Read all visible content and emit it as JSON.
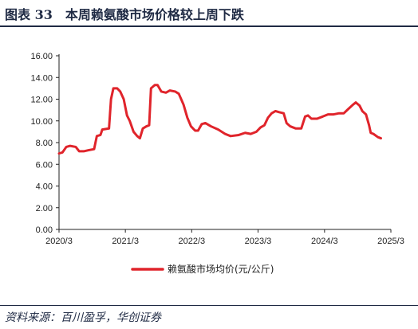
{
  "header": {
    "title": "图表 33　本周赖氨酸市场价格较上周下跌"
  },
  "footer": {
    "source": "资料来源：百川盈孚，华创证券"
  },
  "colors": {
    "series": "#e0242b",
    "text": "#1f2a44",
    "axis": "#222222"
  },
  "chart_data": {
    "type": "line",
    "title": "",
    "xlabel": "",
    "ylabel": "",
    "ylim": [
      0,
      16
    ],
    "xlim": [
      "2020-03-01",
      "2025-03-01"
    ],
    "y_ticks": [
      "0.00",
      "2.00",
      "4.00",
      "6.00",
      "8.00",
      "10.00",
      "12.00",
      "14.00",
      "16.00"
    ],
    "x_ticks": [
      {
        "label": "2020/3",
        "date": "2020-03-01"
      },
      {
        "label": "2021/3",
        "date": "2021-03-01"
      },
      {
        "label": "2022/3",
        "date": "2022-03-01"
      },
      {
        "label": "2023/3",
        "date": "2023-03-01"
      },
      {
        "label": "2024/3",
        "date": "2024-03-01"
      },
      {
        "label": "2025/3",
        "date": "2025-03-01"
      }
    ],
    "grid": false,
    "legend": "bottom-center",
    "series": [
      {
        "name": "赖氨酸市场均价(元/公斤)",
        "points": [
          [
            "2020-03-01",
            7.0
          ],
          [
            "2020-03-20",
            7.1
          ],
          [
            "2020-04-10",
            7.6
          ],
          [
            "2020-05-01",
            7.7
          ],
          [
            "2020-06-01",
            7.6
          ],
          [
            "2020-06-20",
            7.2
          ],
          [
            "2020-07-15",
            7.2
          ],
          [
            "2020-08-10",
            7.3
          ],
          [
            "2020-09-10",
            7.4
          ],
          [
            "2020-09-25",
            8.6
          ],
          [
            "2020-10-15",
            8.7
          ],
          [
            "2020-10-25",
            9.2
          ],
          [
            "2020-12-01",
            9.3
          ],
          [
            "2020-12-12",
            12.0
          ],
          [
            "2020-12-25",
            13.0
          ],
          [
            "2021-01-15",
            13.0
          ],
          [
            "2021-02-01",
            12.7
          ],
          [
            "2021-02-20",
            12.0
          ],
          [
            "2021-03-10",
            10.5
          ],
          [
            "2021-03-25",
            10.0
          ],
          [
            "2021-04-15",
            9.0
          ],
          [
            "2021-05-05",
            8.6
          ],
          [
            "2021-05-20",
            8.4
          ],
          [
            "2021-06-05",
            9.3
          ],
          [
            "2021-06-25",
            9.5
          ],
          [
            "2021-07-10",
            9.6
          ],
          [
            "2021-07-20",
            13.0
          ],
          [
            "2021-08-10",
            13.3
          ],
          [
            "2021-08-25",
            13.3
          ],
          [
            "2021-09-15",
            12.7
          ],
          [
            "2021-10-10",
            12.6
          ],
          [
            "2021-11-01",
            12.8
          ],
          [
            "2021-12-01",
            12.7
          ],
          [
            "2021-12-20",
            12.5
          ],
          [
            "2022-01-15",
            11.5
          ],
          [
            "2022-02-05",
            10.3
          ],
          [
            "2022-02-25",
            9.5
          ],
          [
            "2022-03-20",
            9.1
          ],
          [
            "2022-04-05",
            9.1
          ],
          [
            "2022-04-25",
            9.7
          ],
          [
            "2022-05-15",
            9.8
          ],
          [
            "2022-06-15",
            9.5
          ],
          [
            "2022-07-25",
            9.2
          ],
          [
            "2022-09-01",
            8.8
          ],
          [
            "2022-10-01",
            8.6
          ],
          [
            "2022-11-15",
            8.7
          ],
          [
            "2022-12-20",
            8.9
          ],
          [
            "2023-01-20",
            8.8
          ],
          [
            "2023-02-20",
            9.0
          ],
          [
            "2023-03-15",
            9.4
          ],
          [
            "2023-04-05",
            9.6
          ],
          [
            "2023-04-25",
            10.3
          ],
          [
            "2023-05-15",
            10.7
          ],
          [
            "2023-06-05",
            10.9
          ],
          [
            "2023-06-25",
            10.8
          ],
          [
            "2023-07-20",
            10.7
          ],
          [
            "2023-08-05",
            9.8
          ],
          [
            "2023-08-25",
            9.5
          ],
          [
            "2023-09-25",
            9.3
          ],
          [
            "2023-10-25",
            9.3
          ],
          [
            "2023-11-15",
            10.4
          ],
          [
            "2023-12-01",
            10.5
          ],
          [
            "2023-12-20",
            10.2
          ],
          [
            "2024-01-20",
            10.2
          ],
          [
            "2024-02-20",
            10.4
          ],
          [
            "2024-03-20",
            10.6
          ],
          [
            "2024-04-20",
            10.6
          ],
          [
            "2024-05-20",
            10.7
          ],
          [
            "2024-06-15",
            10.7
          ],
          [
            "2024-07-10",
            11.1
          ],
          [
            "2024-08-05",
            11.5
          ],
          [
            "2024-08-20",
            11.7
          ],
          [
            "2024-09-10",
            11.4
          ],
          [
            "2024-09-25",
            10.9
          ],
          [
            "2024-10-15",
            10.6
          ],
          [
            "2024-11-01",
            9.6
          ],
          [
            "2024-11-10",
            8.9
          ],
          [
            "2024-11-25",
            8.8
          ],
          [
            "2024-12-20",
            8.5
          ],
          [
            "2025-01-05",
            8.4
          ]
        ]
      }
    ]
  }
}
